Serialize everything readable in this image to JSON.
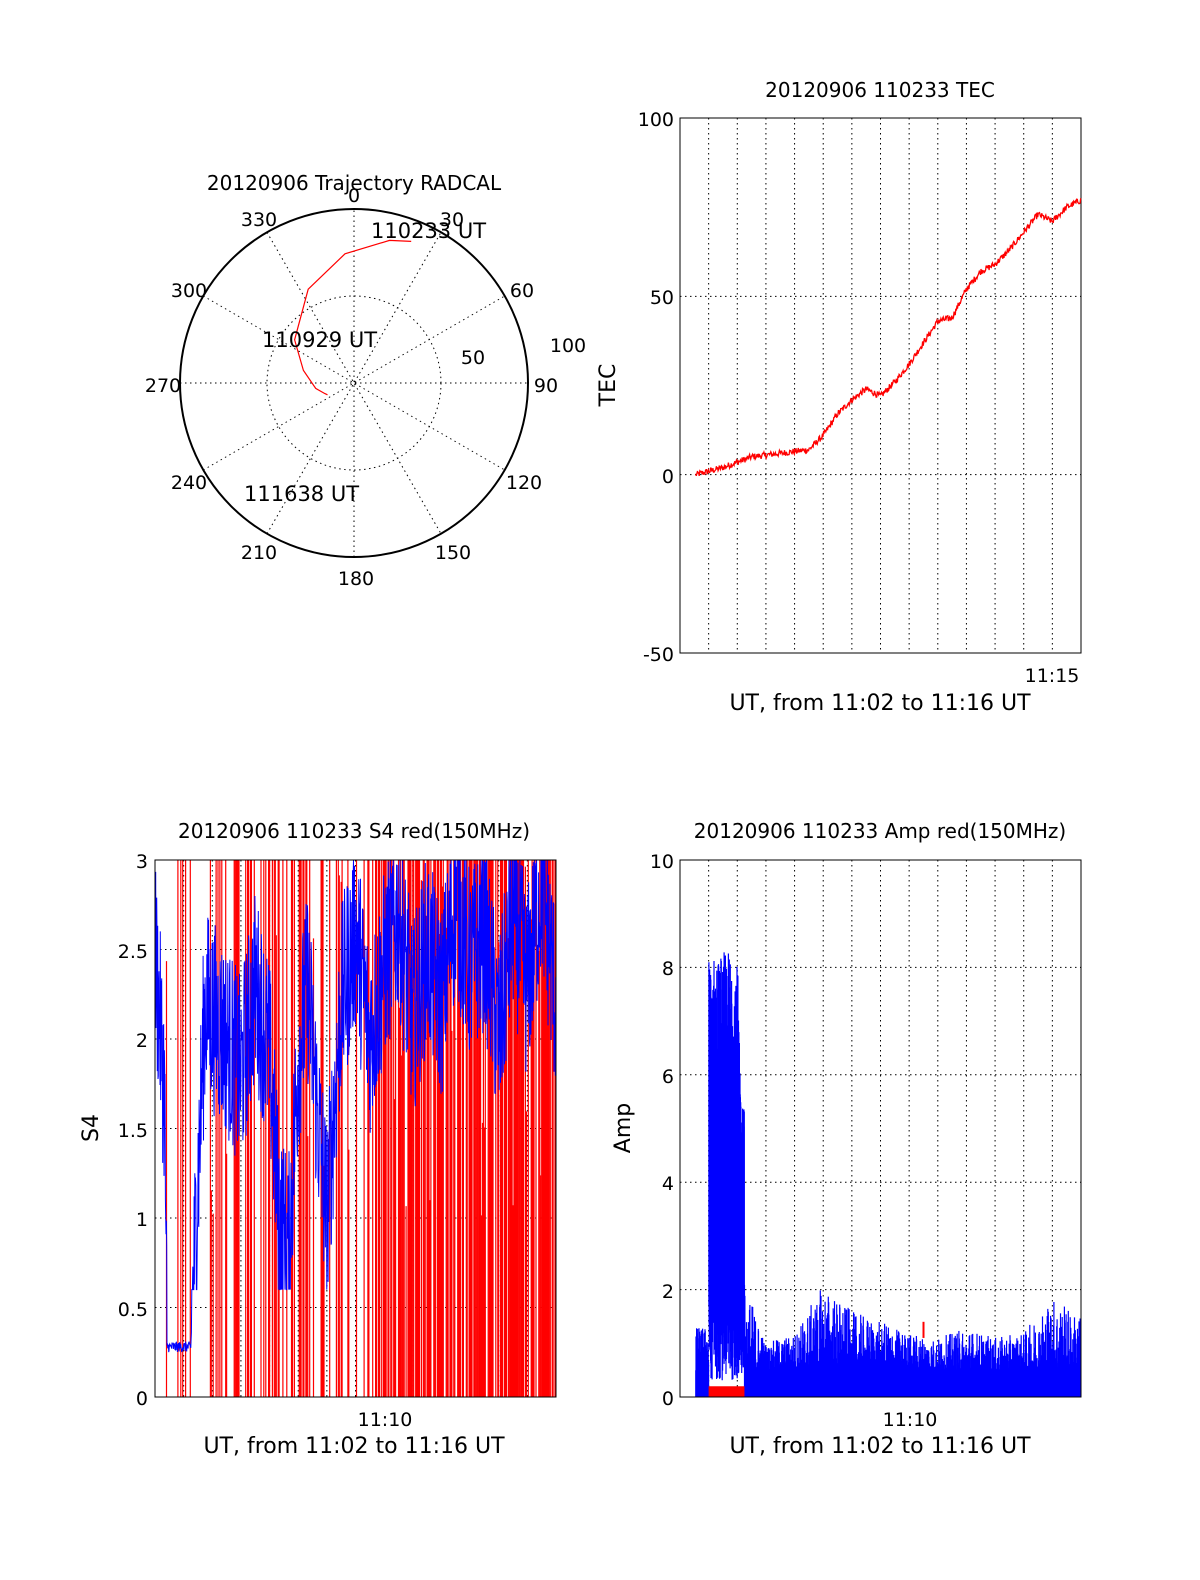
{
  "colors": {
    "red": "#ff0000",
    "blue": "#0000ff",
    "axis": "#000000"
  },
  "trajectory": {
    "title": "20120906 Trajectory RADCAL",
    "azimuth_labels": [
      "0",
      "30",
      "60",
      "90",
      "120",
      "150",
      "180",
      "210",
      "240",
      "270",
      "300",
      "330"
    ],
    "radius_labels": [
      "100",
      "50"
    ],
    "time_labels": [
      "110233 UT",
      "110929 UT",
      "111638 UT"
    ],
    "track": {
      "azimuth_deg": [
        22,
        14,
        356,
        334,
        306,
        284,
        262,
        250,
        246
      ],
      "elevation_deg": [
        11,
        14,
        23,
        36,
        52,
        63,
        70,
        74,
        75
      ]
    }
  },
  "tec": {
    "title": "20120906 110233 TEC",
    "ylabel": "TEC",
    "xlabel": "UT, from 11:02 to 11:16 UT",
    "ytick_labels": [
      "100",
      "50",
      "0",
      "-50"
    ],
    "xtick_labels": [
      "11:15"
    ]
  },
  "s4": {
    "title": "20120906 110233 S4 red(150MHz)",
    "ylabel": "S4",
    "xlabel": "UT, from 11:02 to 11:16 UT",
    "ytick_labels": [
      "3",
      "2.5",
      "2",
      "1.5",
      "1",
      "0.5",
      "0"
    ],
    "xtick_labels": [
      "11:10"
    ]
  },
  "amp": {
    "title": "20120906 110233 Amp red(150MHz)",
    "ylabel": "Amp",
    "xlabel": "UT, from 11:02 to 11:16 UT",
    "ytick_labels": [
      "10",
      "8",
      "6",
      "4",
      "2",
      "0"
    ],
    "xtick_labels": [
      "11:10"
    ]
  },
  "chart_data": [
    {
      "type": "scatter",
      "title": "20120906 Trajectory RADCAL",
      "projection": "polar",
      "series": [
        {
          "azimuth_deg": [
            22,
            14,
            356,
            334,
            306,
            284,
            262,
            250,
            246
          ],
          "elevation_deg": [
            11,
            14,
            23,
            36,
            52,
            63,
            70,
            74,
            75
          ]
        }
      ],
      "annotations": [
        "110233 UT",
        "110929 UT",
        "111638 UT"
      ]
    },
    {
      "type": "line",
      "title": "20120906 110233 TEC",
      "xlabel": "UT, from 11:02 to 11:16 UT",
      "ylabel": "TEC",
      "xlim": [
        "11:02:00",
        "11:16:00"
      ],
      "ylim": [
        -50,
        100
      ],
      "grid": true,
      "series": [
        {
          "color": "#ff0000",
          "x": [
            "11:02:33",
            "11:03:30",
            "11:04:30",
            "11:05:30",
            "11:06:30",
            "11:07:00",
            "11:07:30",
            "11:08:00",
            "11:08:30",
            "11:09:00",
            "11:09:30",
            "11:10:00",
            "11:10:30",
            "11:11:00",
            "11:11:30",
            "11:12:00",
            "11:12:30",
            "11:13:00",
            "11:13:30",
            "11:14:00",
            "11:14:30",
            "11:15:00",
            "11:15:30",
            "11:16:00"
          ],
          "y": [
            0,
            2,
            5,
            6,
            7,
            11,
            17,
            21,
            24,
            22,
            26,
            31,
            37,
            43,
            44,
            52,
            57,
            59,
            63,
            68,
            73,
            71,
            75,
            77
          ]
        }
      ]
    },
    {
      "type": "line",
      "title": "20120906 110233 S4 red(150MHz)",
      "xlabel": "UT, from 11:02 to 11:16 UT",
      "ylabel": "S4",
      "xlim": [
        "11:02:00",
        "11:16:00"
      ],
      "ylim": [
        0,
        3
      ],
      "grid": true,
      "series": [
        {
          "color": "#0000ff",
          "x": [
            "11:02:00",
            "11:02:20",
            "11:02:25",
            "11:03:15",
            "11:03:45",
            "11:04:30",
            "11:05:00",
            "11:05:30",
            "11:06:00",
            "11:06:20",
            "11:06:40",
            "11:07:00",
            "11:07:20",
            "11:07:40",
            "11:08:00",
            "11:08:30",
            "11:09:00",
            "11:09:30",
            "11:10:00",
            "11:10:30",
            "11:11:00",
            "11:11:30",
            "11:12:00",
            "11:12:30",
            "11:13:00",
            "11:13:30",
            "11:14:00",
            "11:14:30",
            "11:15:00",
            "11:15:30",
            "11:16:00"
          ],
          "y": [
            2.5,
            1.7,
            0.28,
            0.28,
            2.2,
            2.0,
            1.8,
            2.3,
            1.9,
            1.0,
            0.8,
            1.9,
            2.3,
            1.6,
            1.0,
            2.2,
            2.6,
            2.0,
            2.4,
            2.7,
            2.1,
            2.5,
            2.2,
            2.8,
            2.4,
            2.6,
            2.0,
            2.7,
            2.3,
            2.9,
            2.2
          ]
        },
        {
          "color": "#ff0000",
          "x": [
            "11:02:00",
            "11:16:00"
          ],
          "y": [
            0,
            3
          ],
          "note": "dense vertical spikes between 0 and 3"
        }
      ]
    },
    {
      "type": "line",
      "title": "20120906 110233 Amp red(150MHz)",
      "xlabel": "UT, from 11:02 to 11:16 UT",
      "ylabel": "Amp",
      "xlim": [
        "11:02:00",
        "11:16:00"
      ],
      "ylim": [
        0,
        10
      ],
      "grid": true,
      "series": [
        {
          "color": "#0000ff",
          "x": [
            "11:02:33",
            "11:02:55",
            "11:03:00",
            "11:04:00",
            "11:04:15",
            "11:05:00",
            "11:06:00",
            "11:07:00",
            "11:08:00",
            "11:09:00",
            "11:10:00",
            "11:11:00",
            "11:12:00",
            "11:13:00",
            "11:14:00",
            "11:15:00",
            "11:16:00"
          ],
          "y": [
            1.3,
            1.1,
            8.2,
            8.4,
            2.2,
            1.0,
            1.2,
            2.1,
            1.6,
            1.4,
            1.2,
            1.1,
            1.3,
            1.1,
            1.2,
            1.9,
            1.5
          ]
        },
        {
          "color": "#ff0000",
          "x": [
            "11:03:00",
            "11:04:15",
            "11:10:30"
          ],
          "y": [
            0.2,
            0.2,
            1.4
          ]
        }
      ]
    }
  ]
}
